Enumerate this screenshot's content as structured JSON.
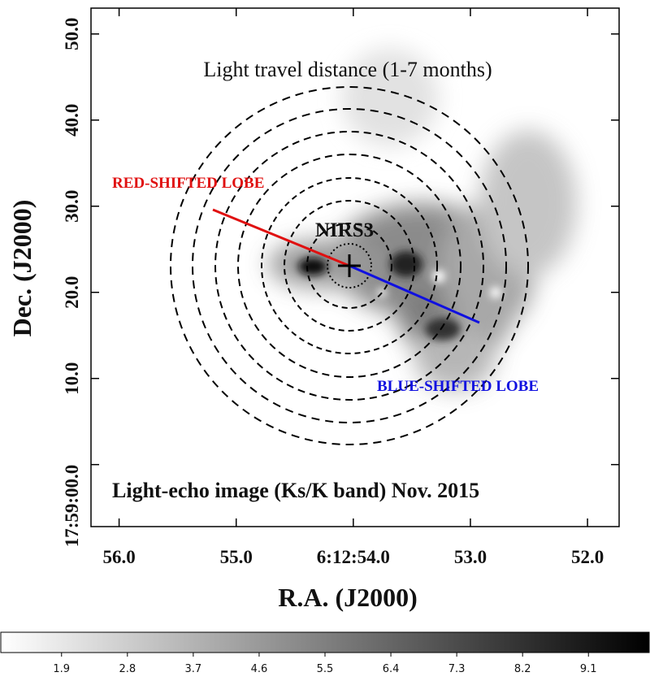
{
  "chart_data": {
    "type": "image",
    "annotations": {
      "rings": "Light travel distance (1-7 months)",
      "red_lobe": "RED-SHIFTED LOBE",
      "source": "NIRS3",
      "blue_lobe": "BLUE-SHIFTED LOBE",
      "caption": "Light-echo image (Ks/K band) Nov. 2015"
    },
    "xlabel": "R.A. (J2000)",
    "ylabel": "Dec. (J2000)",
    "xlim": [
      56.24,
      51.73
    ],
    "xticks": [
      {
        "value": 56,
        "label": "56.0"
      },
      {
        "value": 55,
        "label": "55.0"
      },
      {
        "value": 54,
        "label": "6:12:54.0"
      },
      {
        "value": 53,
        "label": "53.0"
      },
      {
        "value": 52,
        "label": "52.0"
      }
    ],
    "ylim": [
      -7.2,
      53.0
    ],
    "yticks": [
      {
        "value": 0,
        "label": "17:59:00.0"
      },
      {
        "value": 10,
        "label": "10.0"
      },
      {
        "value": 20,
        "label": "20.0"
      },
      {
        "value": 30,
        "label": "30.0"
      },
      {
        "value": 40,
        "label": "40.0"
      },
      {
        "value": 50,
        "label": "50.0"
      }
    ],
    "colorbar": {
      "clim": [
        1.07,
        9.93
      ],
      "ticks": [
        1.9,
        2.8,
        3.7,
        4.6,
        5.5,
        6.4,
        7.3,
        8.2,
        9.1
      ]
    }
  }
}
